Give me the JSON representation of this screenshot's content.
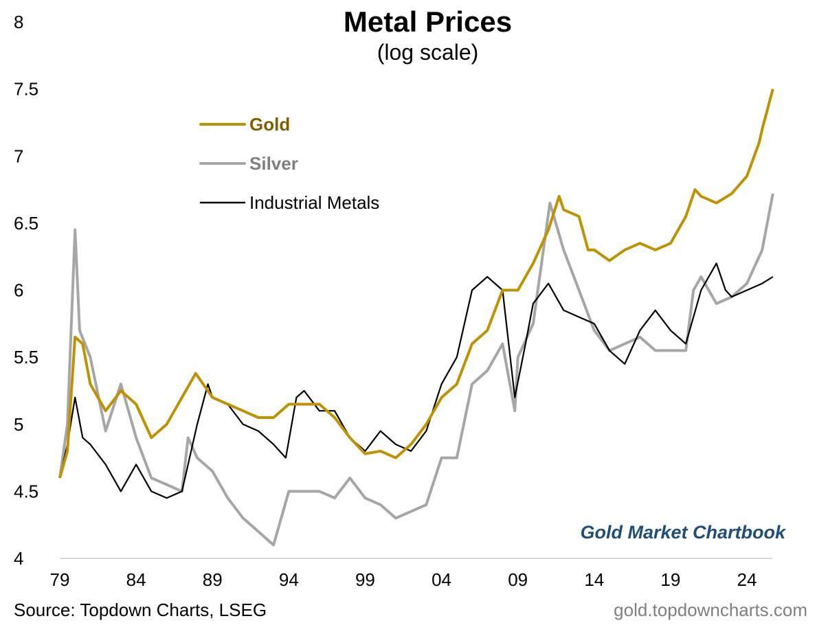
{
  "chart_data": {
    "type": "line",
    "title": "Metal Prices",
    "subtitle": "(log scale)",
    "xlabel": "",
    "ylabel": "",
    "xlim": [
      1979,
      2025.8
    ],
    "ylim": [
      4,
      8
    ],
    "y_ticks": [
      "4",
      "4.5",
      "5",
      "5.5",
      "6",
      "6.5",
      "7",
      "7.5",
      "8"
    ],
    "x_ticks": [
      {
        "year": 1979,
        "label": "79"
      },
      {
        "year": 1984,
        "label": "84"
      },
      {
        "year": 1989,
        "label": "89"
      },
      {
        "year": 1994,
        "label": "94"
      },
      {
        "year": 1999,
        "label": "99"
      },
      {
        "year": 2004,
        "label": "04"
      },
      {
        "year": 2009,
        "label": "09"
      },
      {
        "year": 2014,
        "label": "14"
      },
      {
        "year": 2019,
        "label": "19"
      },
      {
        "year": 2024,
        "label": "24"
      }
    ],
    "grid": false,
    "legend": "top-left",
    "series": [
      {
        "name": "Gold",
        "color": "#c09100",
        "label_color": "#7f6000",
        "bold": true,
        "x": [
          1979,
          1979.5,
          1980,
          1980.5,
          1981,
          1982,
          1983,
          1984,
          1985,
          1986,
          1987,
          1987.9,
          1989,
          1990,
          1991,
          1992,
          1993,
          1994,
          1995,
          1996,
          1997,
          1998,
          1999,
          2000,
          2001,
          2002,
          2003,
          2004,
          2005,
          2006,
          2007,
          2008,
          2009,
          2010,
          2011,
          2011.7,
          2012,
          2013,
          2013.6,
          2014,
          2015,
          2016,
          2017,
          2018,
          2019,
          2020,
          2020.6,
          2021,
          2022,
          2023,
          2024,
          2024.8,
          2025,
          2025.7
        ],
        "y": [
          4.6,
          4.8,
          5.65,
          5.6,
          5.3,
          5.1,
          5.25,
          5.15,
          4.9,
          5.0,
          5.2,
          5.38,
          5.2,
          5.15,
          5.1,
          5.05,
          5.05,
          5.15,
          5.15,
          5.15,
          5.05,
          4.9,
          4.78,
          4.8,
          4.75,
          4.85,
          5.0,
          5.2,
          5.3,
          5.6,
          5.7,
          6.0,
          6.0,
          6.2,
          6.45,
          6.7,
          6.6,
          6.55,
          6.3,
          6.3,
          6.22,
          6.3,
          6.35,
          6.3,
          6.35,
          6.55,
          6.75,
          6.7,
          6.65,
          6.72,
          6.85,
          7.1,
          7.2,
          7.5
        ]
      },
      {
        "name": "Silver",
        "color": "#a6a6a6",
        "label_color": "#7f7f7f",
        "bold": true,
        "x": [
          1979,
          1979.5,
          1980,
          1980.3,
          1981,
          1982,
          1983,
          1984,
          1985,
          1986,
          1987,
          1987.4,
          1988,
          1989,
          1990,
          1991,
          1992,
          1993,
          1994,
          1995,
          1996,
          1997,
          1998,
          1999,
          2000,
          2001,
          2002,
          2003,
          2004,
          2005,
          2006,
          2007,
          2008,
          2008.8,
          2009,
          2010,
          2011.1,
          2012,
          2013,
          2014,
          2015,
          2016,
          2017,
          2018,
          2019,
          2020,
          2020.5,
          2021,
          2022,
          2023,
          2024,
          2025,
          2025.7
        ],
        "y": [
          4.6,
          5.0,
          6.45,
          5.7,
          5.5,
          4.95,
          5.3,
          4.9,
          4.6,
          4.55,
          4.5,
          4.9,
          4.75,
          4.65,
          4.45,
          4.3,
          4.2,
          4.1,
          4.5,
          4.5,
          4.5,
          4.45,
          4.6,
          4.45,
          4.4,
          4.3,
          4.35,
          4.4,
          4.75,
          4.75,
          5.3,
          5.4,
          5.6,
          5.1,
          5.5,
          5.75,
          6.65,
          6.3,
          6.0,
          5.7,
          5.55,
          5.6,
          5.65,
          5.55,
          5.55,
          5.55,
          6.0,
          6.1,
          5.9,
          5.95,
          6.05,
          6.3,
          6.72
        ]
      },
      {
        "name": "Industrial Metals",
        "color": "#000000",
        "label_color": "#000000",
        "bold": false,
        "x": [
          1979,
          1979.5,
          1980,
          1980.5,
          1981,
          1982,
          1983,
          1984,
          1985,
          1986,
          1987,
          1988,
          1988.7,
          1989,
          1990,
          1991,
          1992,
          1993,
          1993.8,
          1994.5,
          1995,
          1996,
          1997,
          1998,
          1999,
          2000,
          2001,
          2002,
          2003,
          2004,
          2005,
          2006,
          2007,
          2008,
          2008.8,
          2009.5,
          2010,
          2011,
          2012,
          2013,
          2014,
          2015,
          2016,
          2017,
          2018,
          2019,
          2020,
          2021,
          2022,
          2022.6,
          2023,
          2024,
          2025,
          2025.7
        ],
        "y": [
          4.6,
          4.85,
          5.2,
          4.9,
          4.85,
          4.7,
          4.5,
          4.7,
          4.5,
          4.45,
          4.5,
          5.0,
          5.3,
          5.2,
          5.15,
          5.0,
          4.95,
          4.85,
          4.75,
          5.2,
          5.25,
          5.1,
          5.1,
          4.9,
          4.8,
          4.95,
          4.85,
          4.8,
          4.95,
          5.3,
          5.5,
          6.0,
          6.1,
          6.0,
          5.2,
          5.6,
          5.9,
          6.05,
          5.85,
          5.8,
          5.75,
          5.55,
          5.45,
          5.7,
          5.85,
          5.7,
          5.6,
          6.0,
          6.2,
          6.0,
          5.95,
          6.0,
          6.05,
          6.1
        ]
      }
    ],
    "annotations": [
      "Gold Market Chartbook"
    ]
  },
  "footer": {
    "source": "Source: Topdown Charts, LSEG",
    "site": "gold.topdowncharts.com"
  }
}
